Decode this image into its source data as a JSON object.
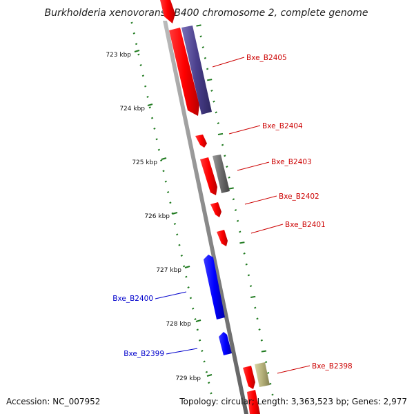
{
  "title": "Burkholderia xenovorans LB400 chromosome 2, complete genome",
  "footer": {
    "accession": "Accession: NC_007952",
    "summary": "Topology: circular; Length: 3,363,523 bp; Genes: 2,977"
  },
  "colors": {
    "forward_cds": "#ff0000",
    "reverse_cds": "#0000ff",
    "rna_gene": "#4a3f8c",
    "pseudo_gene": "#6b6b6b",
    "misc_feature": "#b5b07a",
    "tick": "#1f7a1f",
    "backbone": "#8a8a8a",
    "label_forward": "#cc0000",
    "label_reverse": "#0000cc"
  },
  "scale_ticks": [
    {
      "label": "723 kbp"
    },
    {
      "label": "724 kbp"
    },
    {
      "label": "725 kbp"
    },
    {
      "label": "726 kbp"
    },
    {
      "label": "727 kbp"
    },
    {
      "label": "728 kbp"
    },
    {
      "label": "729 kbp"
    }
  ],
  "gene_labels": [
    {
      "name": "Bxe_B2405",
      "strand": "forward"
    },
    {
      "name": "Bxe_B2404",
      "strand": "forward"
    },
    {
      "name": "Bxe_B2403",
      "strand": "forward"
    },
    {
      "name": "Bxe_B2402",
      "strand": "forward"
    },
    {
      "name": "Bxe_B2401",
      "strand": "forward"
    },
    {
      "name": "Bxe_B2400",
      "strand": "reverse"
    },
    {
      "name": "Bxe_B2399",
      "strand": "reverse"
    },
    {
      "name": "Bxe_B2398",
      "strand": "forward"
    }
  ]
}
